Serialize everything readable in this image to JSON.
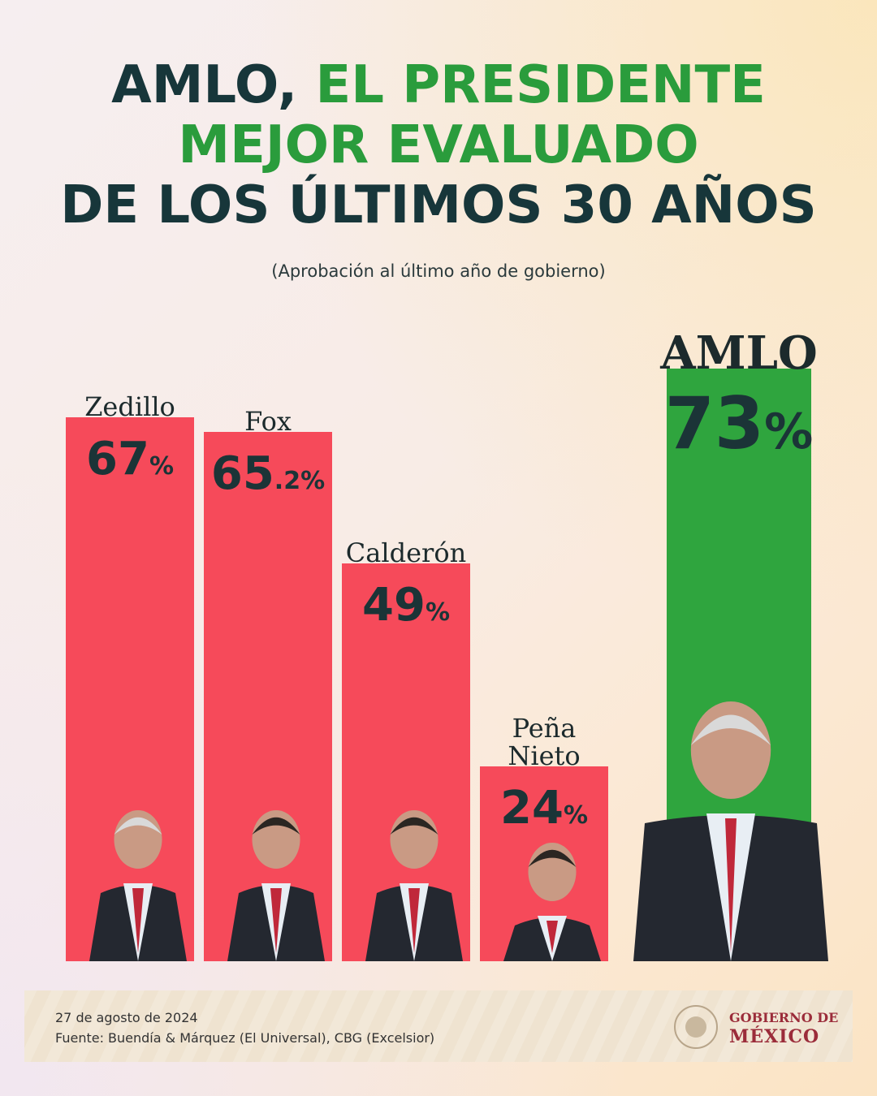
{
  "title": {
    "line1_dark": "AMLO,",
    "line1_green": "EL PRESIDENTE",
    "line2_green": "MEJOR EVALUADO",
    "line3_dark": "DE LOS ÚLTIMOS 30 AÑOS"
  },
  "subtitle": "(Aprobación al último año de gobierno)",
  "colors": {
    "dark": "#17363a",
    "green": "#2a9c3c",
    "red": "#f64a5a",
    "bar_green": "#2fa53e"
  },
  "chart_data": {
    "type": "bar",
    "ylim": [
      0,
      100
    ],
    "categories": [
      "Zedillo",
      "Fox",
      "Calderón",
      "Peña Nieto",
      "AMLO"
    ],
    "values": [
      67,
      65.2,
      49,
      24,
      73
    ],
    "value_labels": [
      {
        "main": "67",
        "suffix": "%"
      },
      {
        "main": "65",
        "suffix": ".2%"
      },
      {
        "main": "49",
        "suffix": "%"
      },
      {
        "main": "24",
        "suffix": "%"
      },
      {
        "main": "73",
        "suffix": "%"
      }
    ],
    "name_lines": [
      [
        "Zedillo"
      ],
      [
        "Fox"
      ],
      [
        "Calderón"
      ],
      [
        "Peña",
        "Nieto"
      ],
      [
        "AMLO"
      ]
    ],
    "bar_colors": [
      "#f64a5a",
      "#f64a5a",
      "#f64a5a",
      "#f64a5a",
      "#2fa53e"
    ],
    "grid": false,
    "legend": "none"
  },
  "footer": {
    "date": "27 de agosto de 2024",
    "source": "Fuente: Buendía & Márquez (El Universal), CBG (Excelsior)",
    "logo_line1": "GOBIERNO DE",
    "logo_line2": "MÉXICO"
  }
}
